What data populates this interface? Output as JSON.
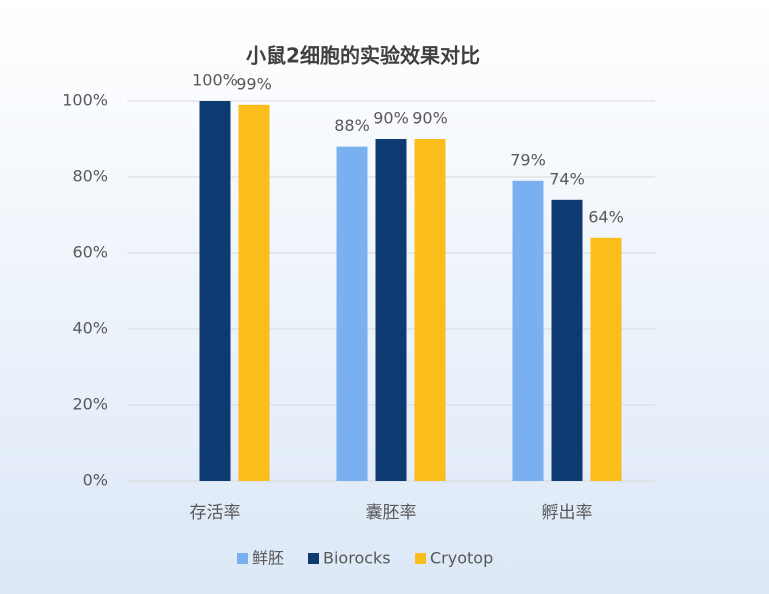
{
  "chart_data": {
    "type": "bar",
    "title": "小鼠2细胞的实验效果对比",
    "categories": [
      "存活率",
      "囊胚率",
      "孵出率"
    ],
    "series": [
      {
        "name": "鲜胚",
        "color": "#7aaff0",
        "values": [
          null,
          88,
          79
        ],
        "value_labels": [
          null,
          "88%",
          "79%"
        ]
      },
      {
        "name": "Biorocks",
        "color": "#0d3a70",
        "values": [
          100,
          90,
          74
        ],
        "value_labels": [
          "100%",
          "90%",
          "74%"
        ]
      },
      {
        "name": "Cryotop",
        "color": "#fbbd1a",
        "values": [
          99,
          90,
          64
        ],
        "value_labels": [
          "99%",
          "90%",
          "64%"
        ]
      }
    ],
    "ylim": [
      0,
      100
    ],
    "yticks": [
      {
        "value": 0,
        "label": "0%"
      },
      {
        "value": 20,
        "label": "20%"
      },
      {
        "value": 40,
        "label": "40%"
      },
      {
        "value": 60,
        "label": "60%"
      },
      {
        "value": 80,
        "label": "80%"
      },
      {
        "value": 100,
        "label": "100%"
      }
    ],
    "grid": true,
    "legend": "bottom"
  }
}
